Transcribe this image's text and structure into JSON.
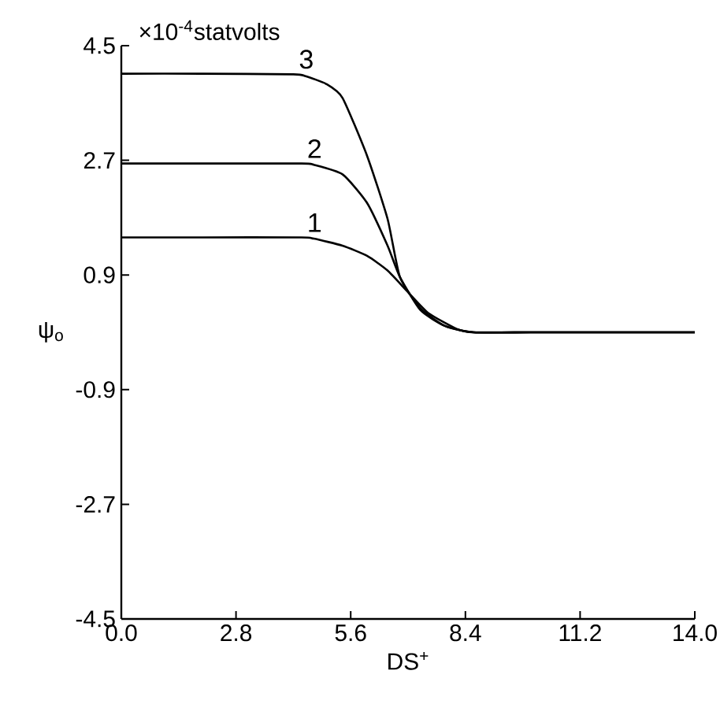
{
  "chart_data": {
    "type": "line",
    "xlabel": "DS$^{+}$",
    "ylabel": "ψ$_{o}$",
    "annotations": [
      "×10$^{-4}$statvolts"
    ],
    "xlim": [
      0,
      14
    ],
    "ylim": [
      -4.5,
      4.5
    ],
    "xticks": [
      {
        "value": 0,
        "label": "0.0"
      },
      2.8,
      5.6,
      8.4,
      11.2,
      {
        "value": 14,
        "label": "14.0"
      }
    ],
    "yticks": [
      -4.5,
      -2.7,
      -0.9,
      0.9,
      2.7,
      4.5
    ],
    "grid": false,
    "legend": false,
    "marker": "none",
    "line_style": "solid",
    "series": [
      {
        "name": "1",
        "color": "#000000",
        "x": [
          0,
          2,
          4.4,
          4.7,
          5.4,
          6.0,
          6.5,
          7.0,
          7.5,
          8.2,
          8.6,
          10,
          12,
          14
        ],
        "values": [
          1.49,
          1.49,
          1.49,
          1.47,
          1.36,
          1.2,
          0.97,
          0.63,
          0.3,
          0.05,
          0,
          0,
          0,
          0
        ]
      },
      {
        "name": "2",
        "color": "#000000",
        "x": [
          0,
          2,
          4.4,
          4.7,
          5.4,
          6.0,
          6.5,
          6.8,
          7.3,
          7.9,
          8.6,
          10,
          12,
          14
        ],
        "values": [
          2.65,
          2.65,
          2.65,
          2.63,
          2.48,
          2.03,
          1.36,
          0.87,
          0.35,
          0.1,
          0,
          0,
          0,
          0
        ]
      },
      {
        "name": "3",
        "color": "#000000",
        "x": [
          0,
          2,
          4.2,
          4.5,
          5.0,
          5.4,
          6.0,
          6.5,
          6.8,
          7.3,
          7.9,
          8.6,
          10,
          12,
          14
        ],
        "values": [
          4.06,
          4.06,
          4.05,
          4.02,
          3.9,
          3.68,
          2.77,
          1.78,
          0.87,
          0.38,
          0.1,
          0,
          0,
          0,
          0
        ]
      }
    ]
  }
}
